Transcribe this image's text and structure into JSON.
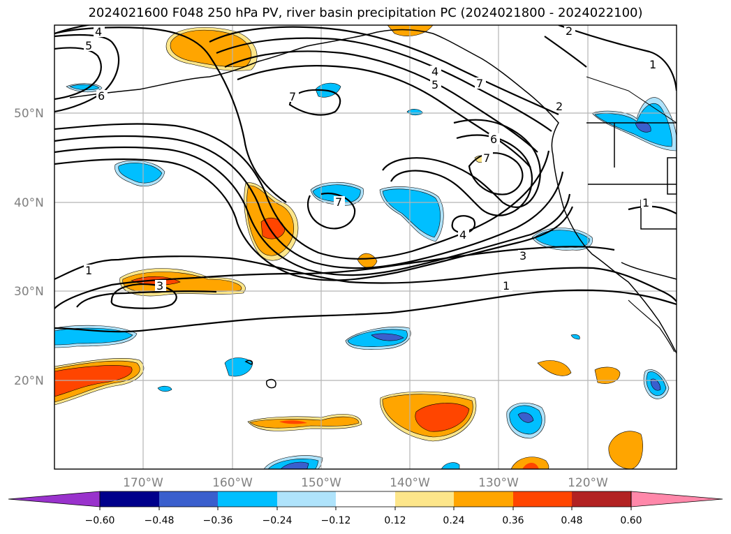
{
  "title": "2024021600 F048 250 hPa PV, river basin precipitation PC (2024021800 - 2024022100)",
  "map": {
    "lat_labels": [
      "50°N",
      "40°N",
      "30°N",
      "20°N"
    ],
    "lon_labels": [
      "170°W",
      "160°W",
      "150°W",
      "140°W",
      "130°W",
      "120°W"
    ],
    "grid": true,
    "contour_labels": [
      "4",
      "5",
      "6",
      "7",
      "7",
      "7",
      "2",
      "1",
      "4",
      "5",
      "6",
      "7",
      "2",
      "1",
      "3",
      "4",
      "3",
      "1",
      "1"
    ]
  },
  "colorbar": {
    "tick_labels": [
      "−0.60",
      "−0.48",
      "−0.36",
      "−0.24",
      "−0.12",
      "0.12",
      "0.24",
      "0.36",
      "0.48",
      "0.60"
    ],
    "colors": [
      "#9932cc",
      "#00008b",
      "#3a5fcd",
      "#00bfff",
      "#afe3fb",
      "#ffffff",
      "#fde68a",
      "#ffa500",
      "#ff4500",
      "#b22222",
      "#ff88aa"
    ],
    "extend": "both"
  }
}
